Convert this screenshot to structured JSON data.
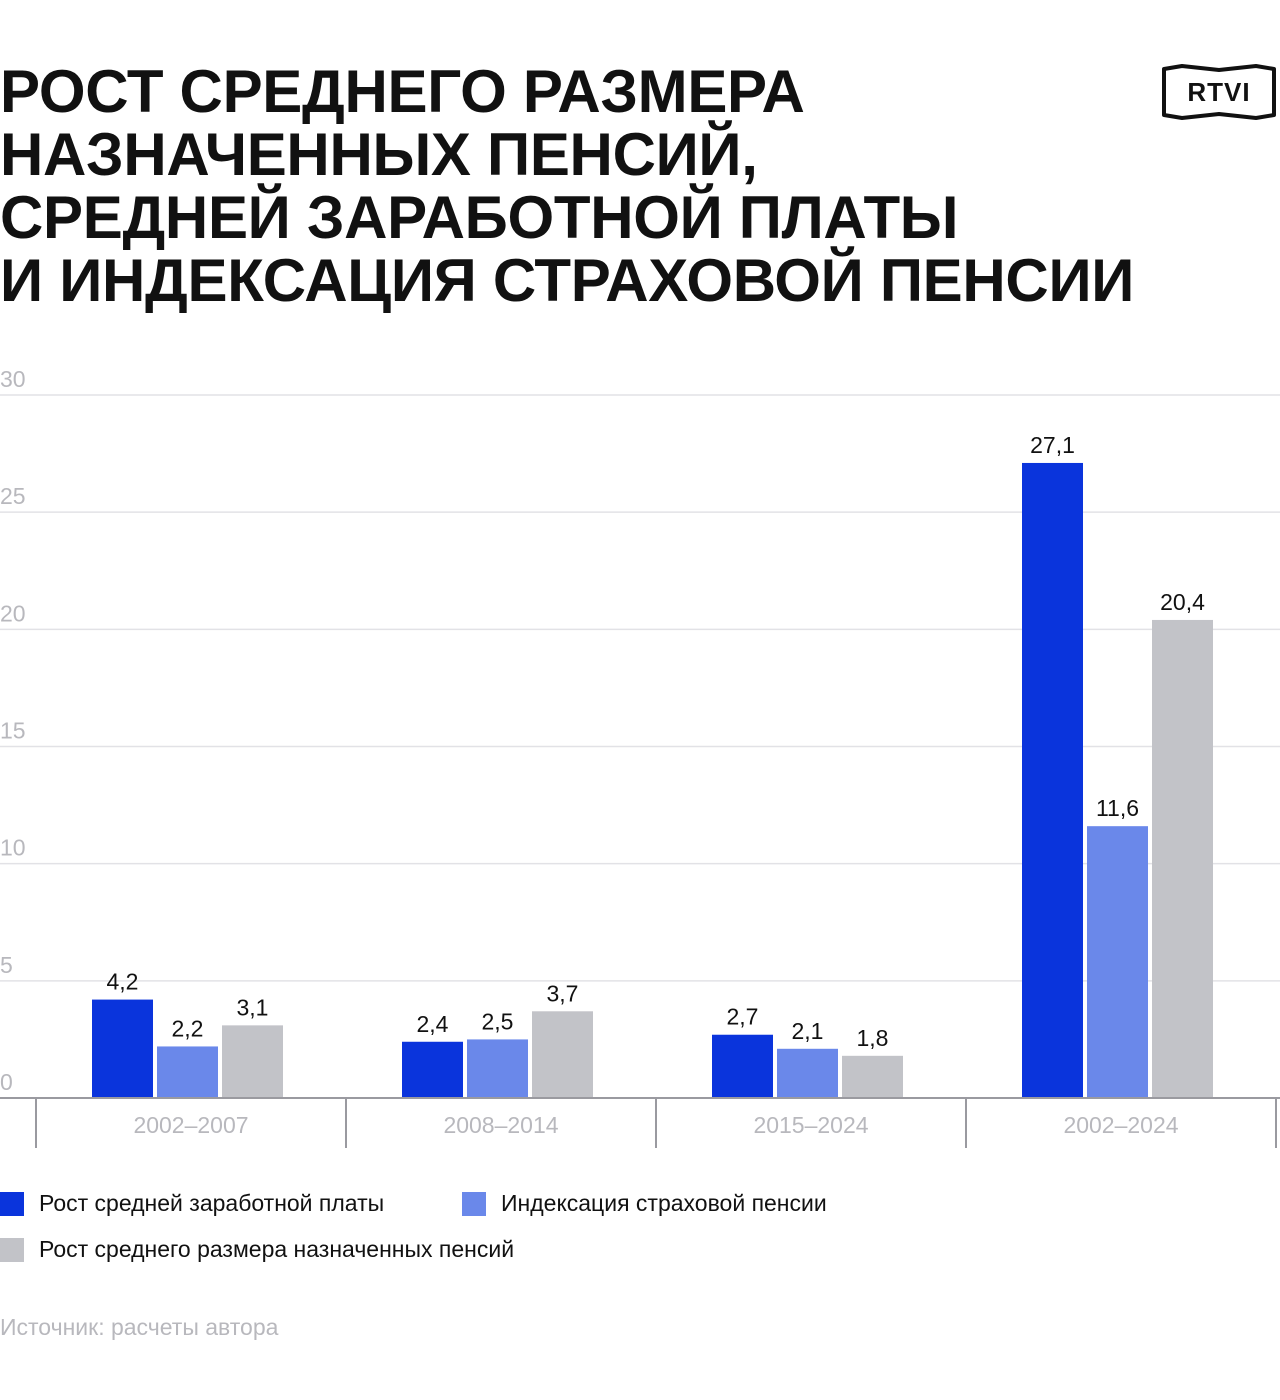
{
  "title_lines": [
    "РОСТ СРЕДНЕГО РАЗМЕРА",
    "НАЗНАЧЕННЫХ ПЕНСИЙ,",
    "СРЕДНЕЙ ЗАРАБОТНОЙ ПЛАТЫ",
    "И ИНДЕКСАЦИЯ СТРАХОВОЙ ПЕНСИИ"
  ],
  "logo": {
    "text": "RTVI",
    "icon": "rtvi-logo-icon"
  },
  "colors": {
    "wages": "#0a34dc",
    "indexation": "#6a88ea",
    "pensions": "#c2c3c8",
    "grid": "#e2e2e6",
    "tick": "#b8b8bd",
    "axis": "#9a9aa0"
  },
  "chart_data": {
    "type": "bar",
    "categories": [
      "2002–2007",
      "2008–2014",
      "2015–2024",
      "2002–2024"
    ],
    "series": [
      {
        "name": "Рост средней заработной платы",
        "values": [
          4.2,
          2.4,
          2.7,
          27.1
        ],
        "value_labels": [
          "4,2",
          "2,4",
          "2,7",
          "27,1"
        ]
      },
      {
        "name": "Индексация страховой пенсии",
        "values": [
          2.2,
          2.5,
          2.1,
          11.6
        ],
        "value_labels": [
          "2,2",
          "2,5",
          "2,1",
          "11,6"
        ]
      },
      {
        "name": "Рост среднего размера назначенных пенсий",
        "values": [
          3.1,
          3.7,
          1.8,
          20.4
        ],
        "value_labels": [
          "3,1",
          "3,7",
          "1,8",
          "20,4"
        ]
      }
    ],
    "ylim": [
      0,
      30
    ],
    "yticks": [
      0,
      5,
      10,
      15,
      20,
      25,
      30
    ],
    "grid": true,
    "legend": "bottom-left",
    "xlabel": "",
    "ylabel": ""
  },
  "source": "Источник: расчеты автора"
}
